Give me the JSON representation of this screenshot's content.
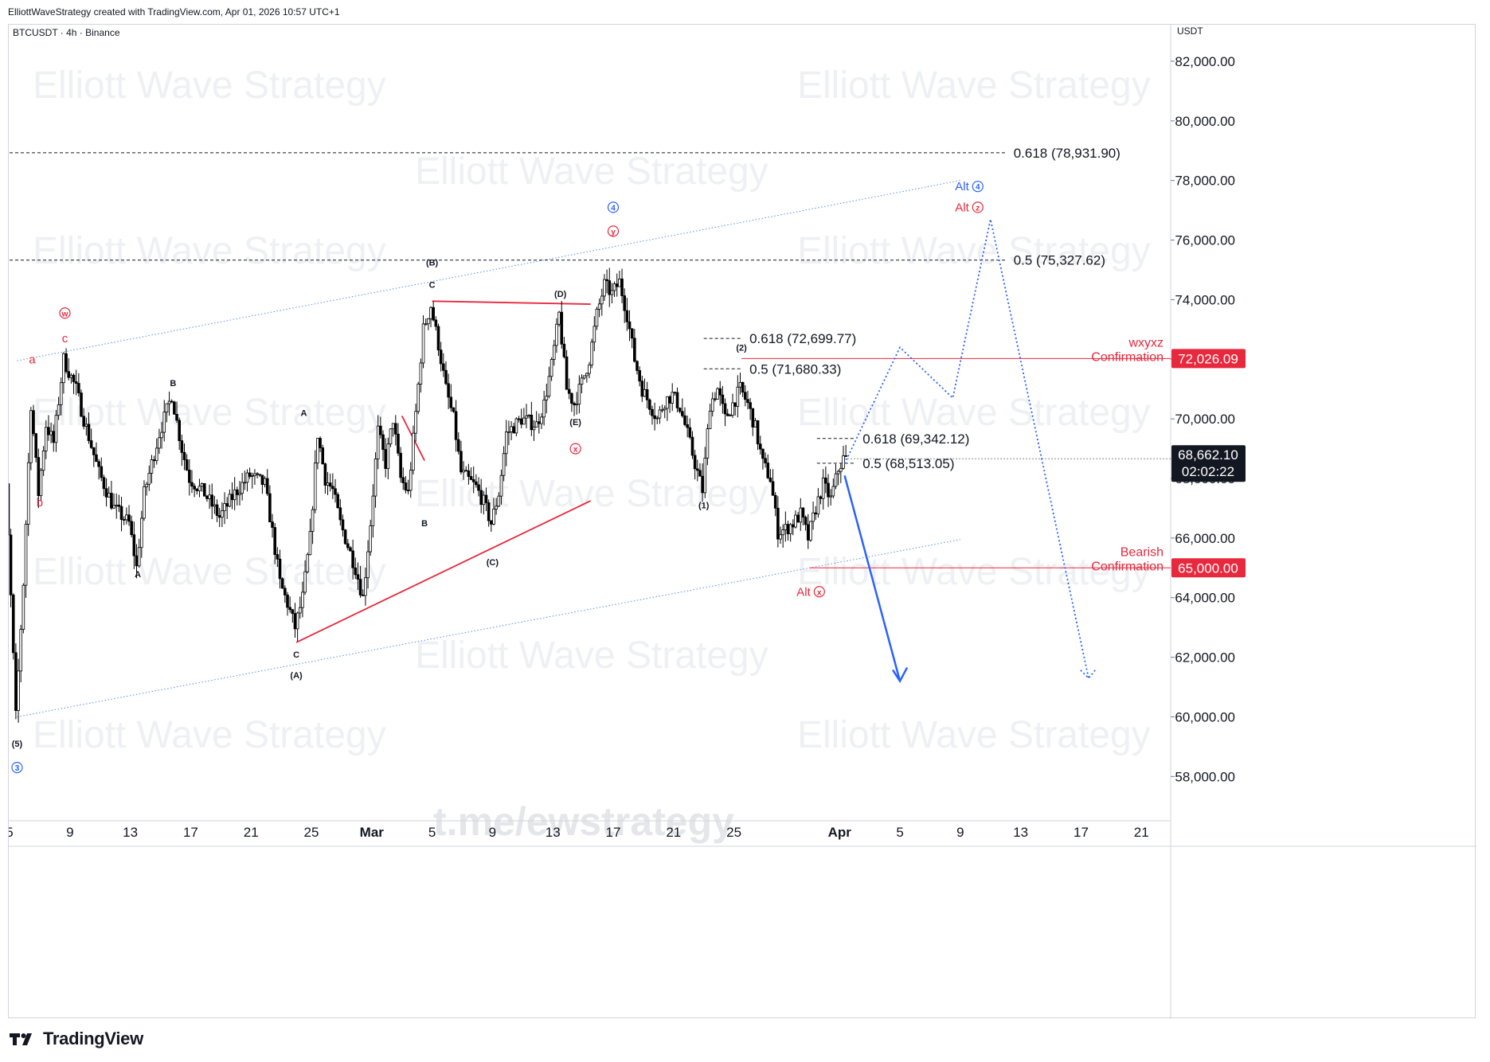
{
  "header": {
    "credit": "ElliottWaveStrategy created with TradingView.com, Apr 01, 2026 10:57 UTC+1",
    "symbol": "BTCUSDT · 4h · Binance"
  },
  "footer": {
    "brand": "TradingView"
  },
  "watermark": {
    "text": "Elliott Wave Strategy",
    "link": "t.me/ewstrategy"
  },
  "colors": {
    "candle": "#000000",
    "red": "#e8283c",
    "blue": "#2962ff",
    "channel": "#5b8def",
    "axis_text": "#131722",
    "grid_border": "#d1d4dc",
    "watermark": "#eef0f3"
  },
  "chart_data": {
    "type": "candlestick",
    "instrument": "BTCUSDT · 4h · Binance",
    "y_axis": {
      "unit": "USDT",
      "ylim": [
        56000,
        84000
      ],
      "ticks": [
        58000,
        60000,
        62000,
        64000,
        66000,
        68000,
        70000,
        72000,
        74000,
        76000,
        78000,
        80000,
        82000
      ],
      "tick_labels": [
        "58,000.00",
        "60,000.00",
        "62,000.00",
        "64,000.00",
        "66,000.00",
        "68,000.00",
        "70,000.00",
        "72,000.00",
        "74,000.00",
        "76,000.00",
        "78,000.00",
        "80,000.00",
        "82,000.00"
      ]
    },
    "x_axis": {
      "start": "2026-02-04",
      "end": "2026-04-23",
      "ticks": [
        "2026-02-05",
        "2026-02-09",
        "2026-02-13",
        "2026-02-17",
        "2026-02-21",
        "2026-02-25",
        "2026-03-01",
        "2026-03-05",
        "2026-03-09",
        "2026-03-13",
        "2026-03-17",
        "2026-03-21",
        "2026-03-25",
        "2026-04-01",
        "2026-04-05",
        "2026-04-09",
        "2026-04-13",
        "2026-04-17",
        "2026-04-21"
      ],
      "tick_labels": [
        "5",
        "9",
        "13",
        "17",
        "21",
        "25",
        "Mar",
        "5",
        "9",
        "13",
        "17",
        "21",
        "25",
        "Apr",
        "5",
        "9",
        "13",
        "17",
        "21"
      ],
      "bold_labels": [
        "Mar",
        "Apr"
      ]
    },
    "price_path": [
      [
        "2026-02-04 00:00",
        73800
      ],
      [
        "2026-02-04 12:00",
        71000
      ],
      [
        "2026-02-05 00:00",
        66000
      ],
      [
        "2026-02-05 12:00",
        60000
      ],
      [
        "2026-02-06 00:00",
        64500
      ],
      [
        "2026-02-06 12:00",
        70500
      ],
      [
        "2026-02-07 00:00",
        67500
      ],
      [
        "2026-02-07 12:00",
        69800
      ],
      [
        "2026-02-08 00:00",
        69200
      ],
      [
        "2026-02-08 16:00",
        72000
      ],
      [
        "2026-02-09 12:00",
        71000
      ],
      [
        "2026-02-10 00:00",
        70000
      ],
      [
        "2026-02-11 00:00",
        68200
      ],
      [
        "2026-02-12 00:00",
        67000
      ],
      [
        "2026-02-13 00:00",
        66500
      ],
      [
        "2026-02-13 12:00",
        65000
      ],
      [
        "2026-02-14 00:00",
        67500
      ],
      [
        "2026-02-15 00:00",
        69500
      ],
      [
        "2026-02-15 20:00",
        70800
      ],
      [
        "2026-02-16 12:00",
        69000
      ],
      [
        "2026-02-17 00:00",
        68000
      ],
      [
        "2026-02-18 00:00",
        67500
      ],
      [
        "2026-02-19 00:00",
        66700
      ],
      [
        "2026-02-20 00:00",
        67500
      ],
      [
        "2026-02-21 00:00",
        68100
      ],
      [
        "2026-02-22 00:00",
        67800
      ],
      [
        "2026-02-22 12:00",
        66200
      ],
      [
        "2026-02-23 00:00",
        64500
      ],
      [
        "2026-02-23 12:00",
        63800
      ],
      [
        "2026-02-24 00:00",
        63000
      ],
      [
        "2026-02-24 12:00",
        64000
      ],
      [
        "2026-02-25 00:00",
        66000
      ],
      [
        "2026-02-25 12:00",
        69500
      ],
      [
        "2026-02-26 00:00",
        68000
      ],
      [
        "2026-02-26 12:00",
        67600
      ],
      [
        "2026-02-27 00:00",
        66500
      ],
      [
        "2026-02-28 00:00",
        65000
      ],
      [
        "2026-02-28 12:00",
        64000
      ],
      [
        "2026-03-01 00:00",
        66500
      ],
      [
        "2026-03-01 12:00",
        69600
      ],
      [
        "2026-03-02 00:00",
        68500
      ],
      [
        "2026-03-02 12:00",
        70000
      ],
      [
        "2026-03-03 00:00",
        68000
      ],
      [
        "2026-03-03 12:00",
        67500
      ],
      [
        "2026-03-04 00:00",
        70200
      ],
      [
        "2026-03-04 12:00",
        73000
      ],
      [
        "2026-03-05 00:00",
        73800
      ],
      [
        "2026-03-05 12:00",
        72500
      ],
      [
        "2026-03-06 00:00",
        71000
      ],
      [
        "2026-03-06 12:00",
        70000
      ],
      [
        "2026-03-07 00:00",
        68200
      ],
      [
        "2026-03-08 00:00",
        67700
      ],
      [
        "2026-03-08 12:00",
        67200
      ],
      [
        "2026-03-09 00:00",
        66500
      ],
      [
        "2026-03-09 12:00",
        67500
      ],
      [
        "2026-03-10 00:00",
        69500
      ],
      [
        "2026-03-11 00:00",
        70000
      ],
      [
        "2026-03-12 00:00",
        69800
      ],
      [
        "2026-03-12 12:00",
        70500
      ],
      [
        "2026-03-13 00:00",
        71800
      ],
      [
        "2026-03-13 12:00",
        73500
      ],
      [
        "2026-03-14 00:00",
        71000
      ],
      [
        "2026-03-14 12:00",
        70500
      ],
      [
        "2026-03-15 00:00",
        71200
      ],
      [
        "2026-03-15 12:00",
        72000
      ],
      [
        "2026-03-16 00:00",
        73500
      ],
      [
        "2026-03-16 12:00",
        74500
      ],
      [
        "2026-03-17 00:00",
        74200
      ],
      [
        "2026-03-17 12:00",
        74600
      ],
      [
        "2026-03-18 00:00",
        73500
      ],
      [
        "2026-03-18 12:00",
        72000
      ],
      [
        "2026-03-19 00:00",
        71000
      ],
      [
        "2026-03-19 12:00",
        70500
      ],
      [
        "2026-03-20 00:00",
        70000
      ],
      [
        "2026-03-20 12:00",
        70600
      ],
      [
        "2026-03-21 00:00",
        70800
      ],
      [
        "2026-03-21 12:00",
        70400
      ],
      [
        "2026-03-22 00:00",
        69500
      ],
      [
        "2026-03-22 12:00",
        68500
      ],
      [
        "2026-03-23 00:00",
        67600
      ],
      [
        "2026-03-23 12:00",
        70500
      ],
      [
        "2026-03-24 00:00",
        71000
      ],
      [
        "2026-03-24 12:00",
        70000
      ],
      [
        "2026-03-25 00:00",
        70500
      ],
      [
        "2026-03-25 12:00",
        71000
      ],
      [
        "2026-03-26 00:00",
        70500
      ],
      [
        "2026-03-26 12:00",
        69700
      ],
      [
        "2026-03-27 00:00",
        68500
      ],
      [
        "2026-03-27 12:00",
        68000
      ],
      [
        "2026-03-28 00:00",
        66200
      ],
      [
        "2026-03-28 12:00",
        66300
      ],
      [
        "2026-03-29 00:00",
        66500
      ],
      [
        "2026-03-29 12:00",
        66800
      ],
      [
        "2026-03-30 00:00",
        66000
      ],
      [
        "2026-03-30 12:00",
        67000
      ],
      [
        "2026-03-31 00:00",
        67800
      ],
      [
        "2026-03-31 12:00",
        67300
      ],
      [
        "2026-04-01 00:00",
        68300
      ],
      [
        "2026-04-01 08:00",
        68662
      ]
    ],
    "current_price": {
      "value": 68662.1,
      "label": "68,662.10",
      "countdown": "02:02:22"
    },
    "price_tags": [
      {
        "value": 72026.09,
        "label": "72,026.09",
        "color": "#e8283c"
      },
      {
        "value": 65000.0,
        "label": "65,000.00",
        "color": "#e8283c"
      }
    ],
    "fib_levels": [
      {
        "label": "0.618 (78,931.90)",
        "value": 78931.9,
        "from": "2026-02-05",
        "to": "2026-04-12"
      },
      {
        "label": "0.5 (75,327.62)",
        "value": 75327.62,
        "from": "2026-02-05",
        "to": "2026-04-12"
      },
      {
        "label": "0.618 (72,699.77)",
        "value": 72699.77,
        "from": "2026-03-23",
        "to": "2026-03-25 12:00"
      },
      {
        "label": "0.5 (71,680.33)",
        "value": 71680.33,
        "from": "2026-03-23",
        "to": "2026-03-25 12:00"
      },
      {
        "label": "0.618 (69,342.12)",
        "value": 69342.12,
        "from": "2026-03-30 12:00",
        "to": "2026-04-02"
      },
      {
        "label": "0.5 (68,513.05)",
        "value": 68513.05,
        "from": "2026-03-30 12:00",
        "to": "2026-04-02"
      }
    ],
    "horizontal_lines": [
      {
        "value": 72026.09,
        "from": "2026-03-25 12:00",
        "label_line1": "wxyxz",
        "label_line2": "Confirmation"
      },
      {
        "value": 65000.0,
        "from": "2026-03-30",
        "label_line1": "Bearish",
        "label_line2": "Confirmation"
      }
    ],
    "channel": [
      {
        "p1": [
          "2026-02-05 12:00",
          60000
        ],
        "p2": [
          "2026-04-09 00:00",
          65950
        ]
      },
      {
        "p1": [
          "2026-02-05 12:00",
          71950
        ],
        "p2": [
          "2026-04-09 00:00",
          78000
        ]
      }
    ],
    "red_lines": [
      {
        "p1": [
          "2026-03-05 00:00",
          73950
        ],
        "p2": [
          "2026-03-15 12:00",
          73850
        ]
      },
      {
        "p1": [
          "2026-02-24 00:00",
          62500
        ],
        "p2": [
          "2026-03-15 12:00",
          67250
        ]
      },
      {
        "p1": [
          "2026-03-03 00:00",
          70100
        ],
        "p2": [
          "2026-03-04 12:00",
          68600
        ]
      }
    ],
    "projections": {
      "alt_dotted_path": [
        [
          "2026-04-01 08:00",
          68500
        ],
        [
          "2026-04-05 00:00",
          72400
        ],
        [
          "2026-04-08 12:00",
          70700
        ],
        [
          "2026-04-11 00:00",
          76700
        ],
        [
          "2026-04-17 12:00",
          61300
        ]
      ],
      "main_arrow": [
        [
          "2026-04-01 08:00",
          68100
        ],
        [
          "2026-04-05 00:00",
          61200
        ]
      ]
    },
    "wave_labels": [
      {
        "text": "(5)",
        "at": [
          "2026-02-05 12:00",
          59100
        ],
        "color": "#131722",
        "style": "small"
      },
      {
        "text": "3",
        "at": [
          "2026-02-05 12:00",
          58300
        ],
        "color": "#2962ff",
        "style": "circled"
      },
      {
        "text": "a",
        "at": [
          "2026-02-06 12:00",
          72000
        ],
        "color": "#e8283c",
        "style": "plain"
      },
      {
        "text": "b",
        "at": [
          "2026-02-07 00:00",
          67200
        ],
        "color": "#e8283c",
        "style": "plain"
      },
      {
        "text": "c",
        "at": [
          "2026-02-08 16:00",
          72700
        ],
        "color": "#e8283c",
        "style": "plain"
      },
      {
        "text": "w",
        "at": [
          "2026-02-08 16:00",
          73550
        ],
        "color": "#e8283c",
        "style": "circled"
      },
      {
        "text": "A",
        "at": [
          "2026-02-13 12:00",
          64800
        ],
        "color": "#131722",
        "style": "small"
      },
      {
        "text": "B",
        "at": [
          "2026-02-15 20:00",
          71200
        ],
        "color": "#131722",
        "style": "small"
      },
      {
        "text": "A",
        "at": [
          "2026-02-24 12:00",
          70200
        ],
        "color": "#131722",
        "style": "small"
      },
      {
        "text": "C",
        "at": [
          "2026-02-24 00:00",
          62100
        ],
        "color": "#131722",
        "style": "small"
      },
      {
        "text": "(A)",
        "at": [
          "2026-02-24 00:00",
          61400
        ],
        "color": "#131722",
        "style": "small"
      },
      {
        "text": "B",
        "at": [
          "2026-03-04 12:00",
          66500
        ],
        "color": "#131722",
        "style": "small"
      },
      {
        "text": "C",
        "at": [
          "2026-03-05 00:00",
          74500
        ],
        "color": "#131722",
        "style": "small"
      },
      {
        "text": "(B)",
        "at": [
          "2026-03-05 00:00",
          75250
        ],
        "color": "#131722",
        "style": "small"
      },
      {
        "text": "(C)",
        "at": [
          "2026-03-09 00:00",
          65200
        ],
        "color": "#131722",
        "style": "small"
      },
      {
        "text": "(D)",
        "at": [
          "2026-03-13 12:00",
          74200
        ],
        "color": "#131722",
        "style": "small"
      },
      {
        "text": "(E)",
        "at": [
          "2026-03-14 12:00",
          69900
        ],
        "color": "#131722",
        "style": "small"
      },
      {
        "text": "x",
        "at": [
          "2026-03-14 12:00",
          69000
        ],
        "color": "#e8283c",
        "style": "circled"
      },
      {
        "text": "y",
        "at": [
          "2026-03-17 00:00",
          76300
        ],
        "color": "#e8283c",
        "style": "circled"
      },
      {
        "text": "4",
        "at": [
          "2026-03-17 00:00",
          77100
        ],
        "color": "#2962ff",
        "style": "circled"
      },
      {
        "text": "(1)",
        "at": [
          "2026-03-23 00:00",
          67100
        ],
        "color": "#131722",
        "style": "small"
      },
      {
        "text": "(2)",
        "at": [
          "2026-03-25 12:00",
          72400
        ],
        "color": "#131722",
        "style": "small"
      },
      {
        "text": "Alt",
        "circled": "x",
        "at": [
          "2026-03-30 12:00",
          64200
        ],
        "color": "#e8283c",
        "style": "alt"
      },
      {
        "text": "Alt",
        "circled": "4",
        "at": [
          "2026-04-10 00:00",
          77800
        ],
        "color": "#2962ff",
        "style": "alt"
      },
      {
        "text": "Alt",
        "circled": "z",
        "at": [
          "2026-04-10 00:00",
          77100
        ],
        "color": "#e8283c",
        "style": "alt"
      }
    ]
  }
}
